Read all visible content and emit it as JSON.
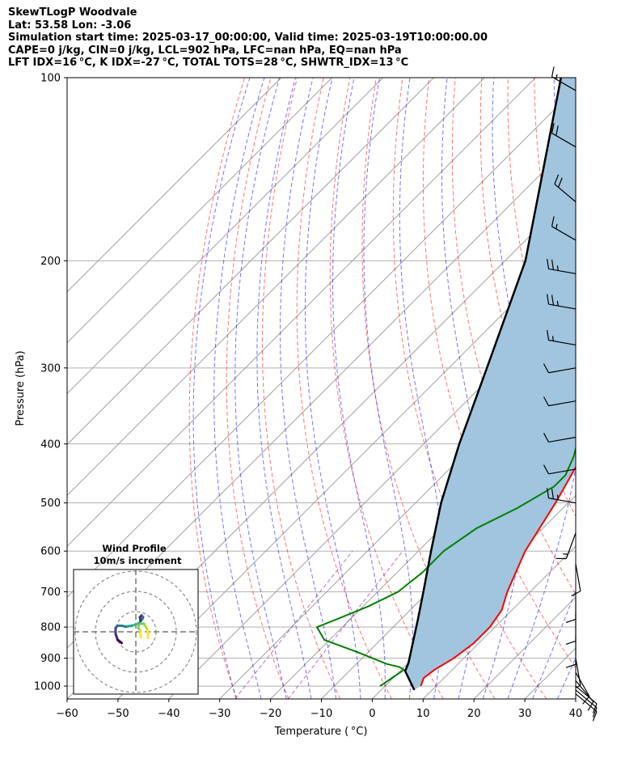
{
  "header": {
    "line1": "SkewTLogP Woodvale",
    "line2": "Lat: 53.58   Lon: -3.06",
    "line3": "Simulation start time: 2025-03-17_00:00:00, Valid time: 2025-03-19T10:00:00.00",
    "line4": "CAPE=0 j/kg, CIN=0 j/kg, LCL=902 hPa, LFC=nan hPa, EQ=nan hPa",
    "line5": "LFT IDX=16 °C, K IDX=-27 °C, TOTAL TOTS=28 °C, SHWTR_IDX=13 °C"
  },
  "chart_data": {
    "type": "line",
    "subtype": "skew-t log-p",
    "xlabel": "Temperature ( °C)",
    "ylabel": "Pressure (hPa)",
    "xlim": [
      -60,
      40
    ],
    "ylim": [
      1050,
      100
    ],
    "x_ticks": [
      "−60",
      "−50",
      "−40",
      "−30",
      "−20",
      "−10",
      "0",
      "10",
      "20",
      "30",
      "40"
    ],
    "y_ticks": [
      "100",
      "200",
      "300",
      "400",
      "500",
      "600",
      "700",
      "800",
      "900",
      "1000"
    ],
    "grid": true,
    "colors": {
      "temperature": "#ff0000",
      "dewpoint": "#008000",
      "parcel": "#000000",
      "cape_fill": "#a1c5de",
      "dry_adiabat": "#ff0000",
      "moist_adiabat": "#0000ff",
      "mixing_ratio": "#9932cc",
      "isotherm": "#808080"
    },
    "series": [
      {
        "key": "temperature",
        "points": [
          [
            7,
            1000
          ],
          [
            6,
            970
          ],
          [
            6.5,
            940
          ],
          [
            8,
            900
          ],
          [
            9,
            850
          ],
          [
            9,
            800
          ],
          [
            8,
            750
          ],
          [
            5.5,
            700
          ],
          [
            1,
            600
          ],
          [
            -2.5,
            500
          ],
          [
            -7.5,
            400
          ],
          [
            -14.5,
            310
          ],
          [
            -15,
            280
          ],
          [
            -14.5,
            250
          ],
          [
            -12.5,
            220
          ],
          [
            -10,
            200
          ],
          [
            -6,
            180
          ],
          [
            -3.5,
            160
          ],
          [
            -2,
            150
          ],
          [
            -1,
            140
          ],
          [
            0,
            130
          ],
          [
            1.5,
            125
          ],
          [
            4,
            115
          ],
          [
            7,
            108
          ],
          [
            9,
            100
          ]
        ]
      },
      {
        "key": "dewpoint",
        "points": [
          [
            -1,
            1000
          ],
          [
            -0.5,
            980
          ],
          [
            0,
            960
          ],
          [
            0.5,
            940
          ],
          [
            -1,
            930
          ],
          [
            -4,
            920
          ],
          [
            -12,
            880
          ],
          [
            -21,
            840
          ],
          [
            -25,
            800
          ],
          [
            -22,
            770
          ],
          [
            -19,
            740
          ],
          [
            -16,
            700
          ],
          [
            -15,
            650
          ],
          [
            -15,
            600
          ],
          [
            -13,
            550
          ],
          [
            -9,
            510
          ],
          [
            -6,
            470
          ],
          [
            -6,
            450
          ],
          [
            -8,
            420
          ],
          [
            -15,
            350
          ],
          [
            -20,
            300
          ],
          [
            -22,
            270
          ],
          [
            -22,
            250
          ],
          [
            -19,
            200
          ],
          [
            -18,
            180
          ],
          [
            -21,
            160
          ],
          [
            -20,
            150
          ],
          [
            -15,
            130
          ],
          [
            -10,
            110
          ],
          [
            -7,
            100
          ]
        ]
      },
      {
        "key": "parcel",
        "points": [
          [
            6.5,
            1015
          ],
          [
            1,
            945
          ],
          [
            0,
            915
          ],
          [
            -3,
            850
          ],
          [
            -6.5,
            780
          ],
          [
            -11,
            700
          ],
          [
            -17.5,
            600
          ],
          [
            -25,
            500
          ],
          [
            -33,
            400
          ],
          [
            -42.5,
            300
          ],
          [
            -56,
            200
          ],
          [
            -68,
            150
          ],
          [
            -85,
            100
          ]
        ]
      }
    ],
    "hodograph": {
      "title": "Wind Profile",
      "subtitle": "10m/s increment",
      "rings_mps": [
        10,
        20,
        30
      ],
      "trace_uv": [
        [
          6,
          -3
        ],
        [
          6,
          -1
        ],
        [
          5.5,
          1.5
        ],
        [
          4,
          4
        ],
        [
          1,
          4
        ],
        [
          -2,
          3
        ],
        [
          -5,
          2.5
        ],
        [
          -7,
          3
        ],
        [
          -9,
          3
        ],
        [
          -10,
          2
        ],
        [
          -10,
          -1
        ],
        [
          -9,
          -4
        ],
        [
          -7,
          -5.5
        ]
      ],
      "trace_uv_2": [
        [
          6,
          -3
        ],
        [
          5,
          1
        ],
        [
          3,
          2
        ],
        [
          4,
          5
        ],
        [
          6,
          6
        ],
        [
          8,
          7
        ],
        [
          9,
          8
        ],
        [
          7,
          9
        ],
        [
          5,
          8
        ],
        [
          6,
          6
        ]
      ]
    },
    "wind_barbs": {
      "pressures": [
        105,
        130,
        160,
        185,
        210,
        240,
        275,
        300,
        340,
        390,
        440,
        500,
        560,
        630,
        700,
        760,
        830,
        900,
        950,
        980,
        1000,
        1015,
        1030
      ],
      "speeds_kt": [
        15,
        20,
        20,
        15,
        25,
        25,
        15,
        10,
        10,
        10,
        10,
        25,
        15,
        10,
        10,
        10,
        10,
        5,
        10,
        10,
        10,
        10,
        10
      ],
      "directions_deg": [
        300,
        300,
        310,
        300,
        280,
        280,
        280,
        260,
        260,
        260,
        260,
        280,
        200,
        170,
        180,
        180,
        180,
        170,
        150,
        140,
        130,
        130,
        130
      ]
    }
  }
}
